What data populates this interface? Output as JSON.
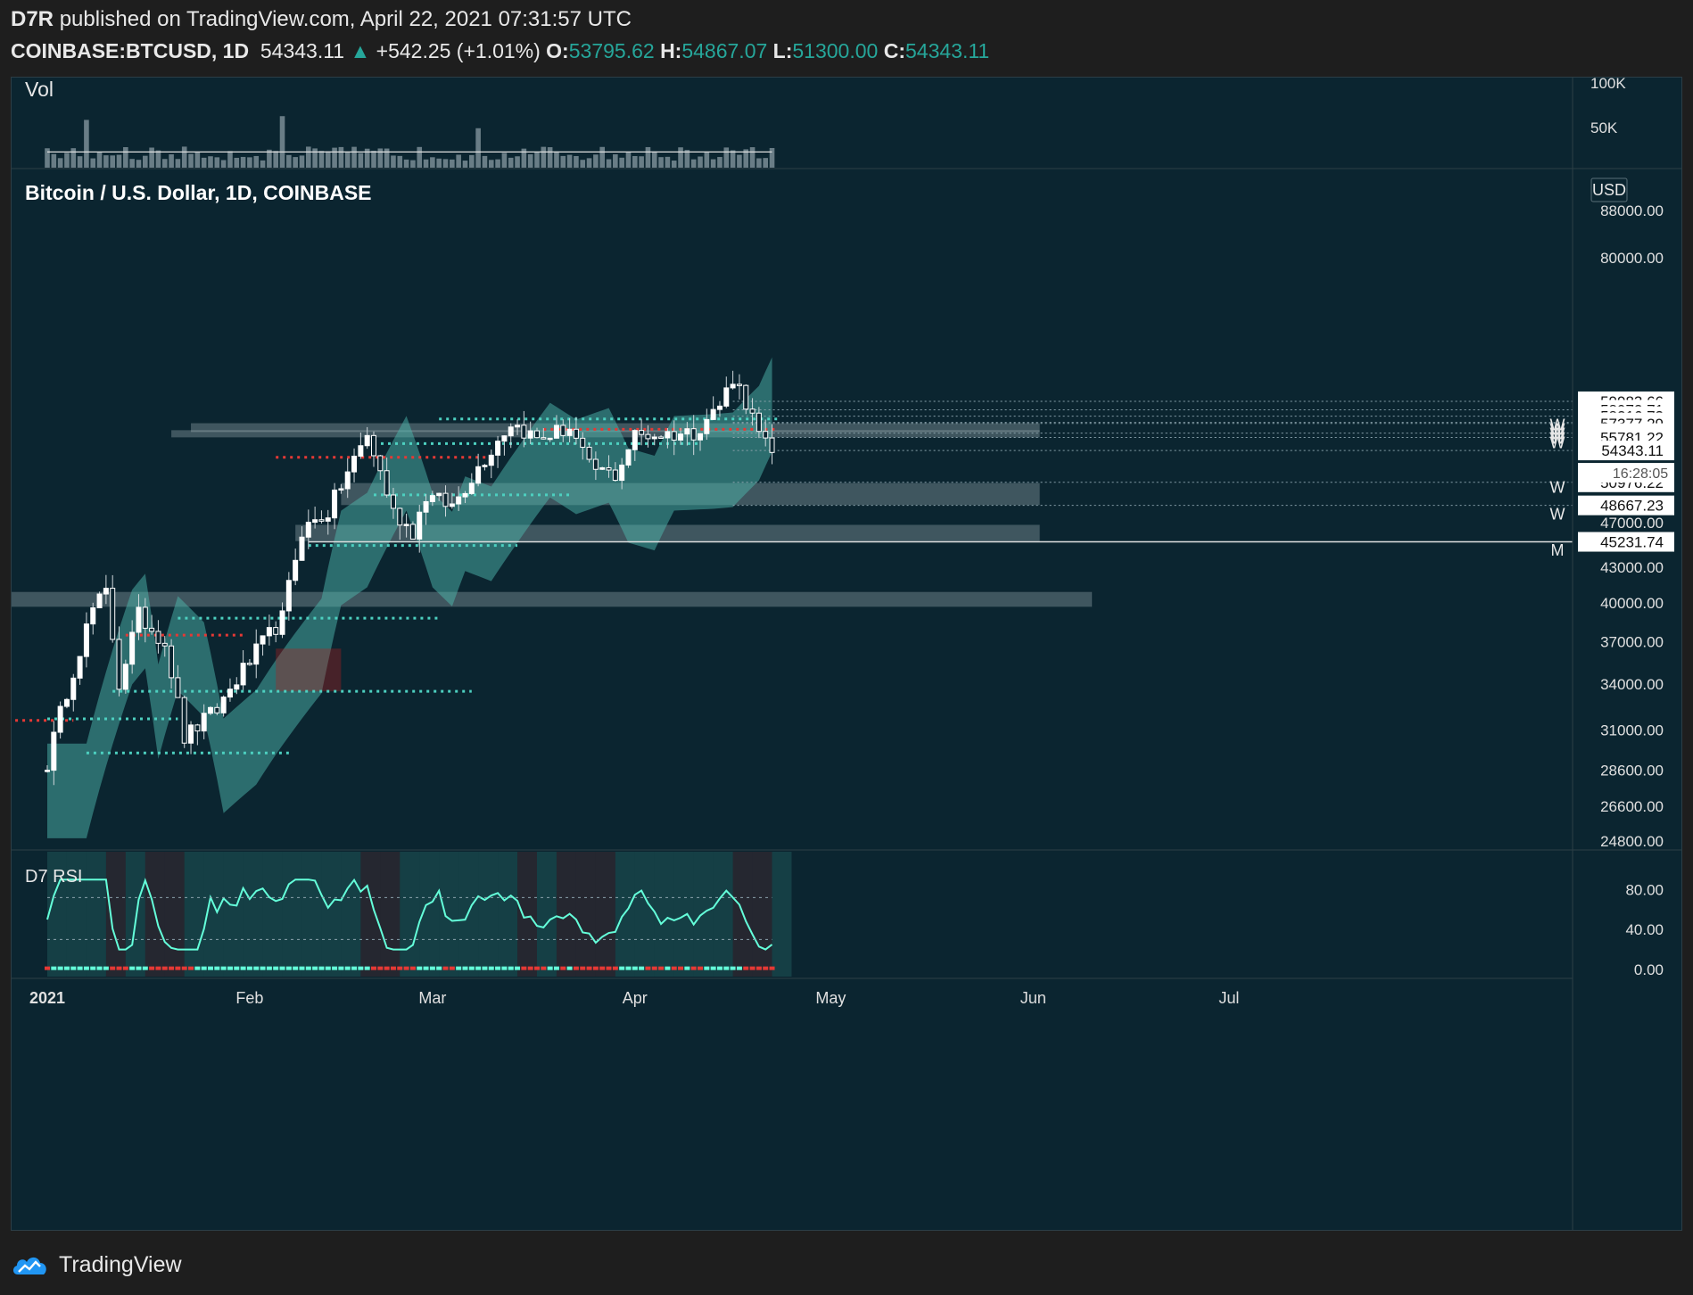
{
  "header": {
    "author": "D7R",
    "published_text": "published on TradingView.com, April 22, 2021 07:31:57 UTC",
    "symbol": "COINBASE:BTCUSD, 1D",
    "last": "54343.11",
    "change_arrow": "▲",
    "change": "+542.25 (+1.01%)",
    "o_label": "O:",
    "o_value": "53795.62",
    "h_label": "H:",
    "h_value": "54867.07",
    "l_label": "L:",
    "l_value": "51300.00",
    "c_label": "C:",
    "c_value": "54343.11"
  },
  "panes": {
    "volume_label": "Vol",
    "main_title": "Bitcoin / U.S. Dollar, 1D, COINBASE",
    "rsi_label": "D7 RSI",
    "currency": "USD",
    "countdown": "16:28:05"
  },
  "footer": {
    "brand": "TradingView"
  },
  "colors": {
    "background": "#0b2530",
    "up_candle": "#ffffff",
    "down_candle": "#ffffff",
    "cloud_bull": "#4db6ac",
    "cloud_bear": "#b71c1c",
    "rsi_bull": "#64ffda",
    "rsi_bear": "#e53935",
    "accent_green": "#26a69a"
  },
  "icons": {
    "brand_logo": "tradingview-cloud-logo",
    "up_arrow": "up-triangle-icon"
  },
  "chart_data": {
    "type": "candlestick",
    "title": "Bitcoin / U.S. Dollar, 1D, COINBASE",
    "x_ticks": [
      "2021",
      "Feb",
      "Mar",
      "Apr",
      "May",
      "Jun",
      "Jul"
    ],
    "x_tick_days": [
      0,
      31,
      59,
      90,
      120,
      151,
      181
    ],
    "y_ticks": [
      "88000.00",
      "80000.00",
      "47000.00",
      "43000.00",
      "40000.00",
      "37000.00",
      "34000.00",
      "31000.00",
      "28600.00",
      "26600.00",
      "24800.00"
    ],
    "y_scale": "log",
    "price_labels": [
      {
        "value": "59983.66",
        "highlight": true
      },
      {
        "value": "58972.71",
        "highlight": true
      },
      {
        "value": "58216.73",
        "highlight": true
      },
      {
        "value": "57489.16",
        "highlight": true
      },
      {
        "value": "57377.29",
        "highlight": true
      },
      {
        "value": "56273.65",
        "highlight": true
      },
      {
        "value": "55781.22",
        "highlight": true
      },
      {
        "value": "54343.11",
        "highlight": true
      },
      {
        "value": "50976.22",
        "highlight": true
      },
      {
        "value": "48667.23",
        "highlight": true
      },
      {
        "value": "45231.74",
        "highlight": true
      }
    ],
    "level_markers": [
      {
        "text": "W",
        "price": 56600
      },
      {
        "text": "W",
        "price": 56100
      },
      {
        "text": "W",
        "price": 55600
      },
      {
        "text": "W",
        "price": 55100
      },
      {
        "text": "W",
        "price": 54600
      },
      {
        "text": "W",
        "price": 49900
      },
      {
        "text": "W",
        "price": 47300
      },
      {
        "text": "M",
        "price": 44000
      }
    ],
    "zones": [
      {
        "from_day": 22,
        "to_day": 152,
        "low": 56400,
        "high": 57400
      },
      {
        "from_day": 19,
        "to_day": 152,
        "low": 55900,
        "high": 56600
      },
      {
        "from_day": 45,
        "to_day": 152,
        "low": 48700,
        "high": 50900
      },
      {
        "from_day": 38,
        "to_day": 152,
        "low": 45300,
        "high": 46800
      },
      {
        "from_day": -6,
        "to_day": 160,
        "low": 39700,
        "high": 40900
      }
    ],
    "candle_keyframes": [
      {
        "day": 0,
        "price": 29000
      },
      {
        "day": 2,
        "price": 32000
      },
      {
        "day": 7,
        "price": 39500
      },
      {
        "day": 9,
        "price": 40800
      },
      {
        "day": 11,
        "price": 34000
      },
      {
        "day": 14,
        "price": 39000
      },
      {
        "day": 18,
        "price": 37000
      },
      {
        "day": 21,
        "price": 30500
      },
      {
        "day": 26,
        "price": 32300
      },
      {
        "day": 29,
        "price": 34300
      },
      {
        "day": 36,
        "price": 38800
      },
      {
        "day": 39,
        "price": 46300
      },
      {
        "day": 43,
        "price": 48000
      },
      {
        "day": 49,
        "price": 56000
      },
      {
        "day": 53,
        "price": 48000
      },
      {
        "day": 56,
        "price": 46200
      },
      {
        "day": 58,
        "price": 49600
      },
      {
        "day": 62,
        "price": 48600
      },
      {
        "day": 66,
        "price": 52500
      },
      {
        "day": 71,
        "price": 57500
      },
      {
        "day": 75,
        "price": 55600
      },
      {
        "day": 80,
        "price": 56900
      },
      {
        "day": 83,
        "price": 52500
      },
      {
        "day": 87,
        "price": 51700
      },
      {
        "day": 90,
        "price": 56000
      },
      {
        "day": 96,
        "price": 56200
      },
      {
        "day": 99,
        "price": 56400
      },
      {
        "day": 103,
        "price": 59500
      },
      {
        "day": 105,
        "price": 63000
      },
      {
        "day": 107,
        "price": 60000
      },
      {
        "day": 109,
        "price": 56000
      },
      {
        "day": 111,
        "price": 53800
      }
    ],
    "volume_ticks": [
      "100K",
      "50K"
    ],
    "volume_avg": 20000,
    "rsi_ticks": [
      "80.00",
      "40.00",
      "0.00"
    ]
  }
}
